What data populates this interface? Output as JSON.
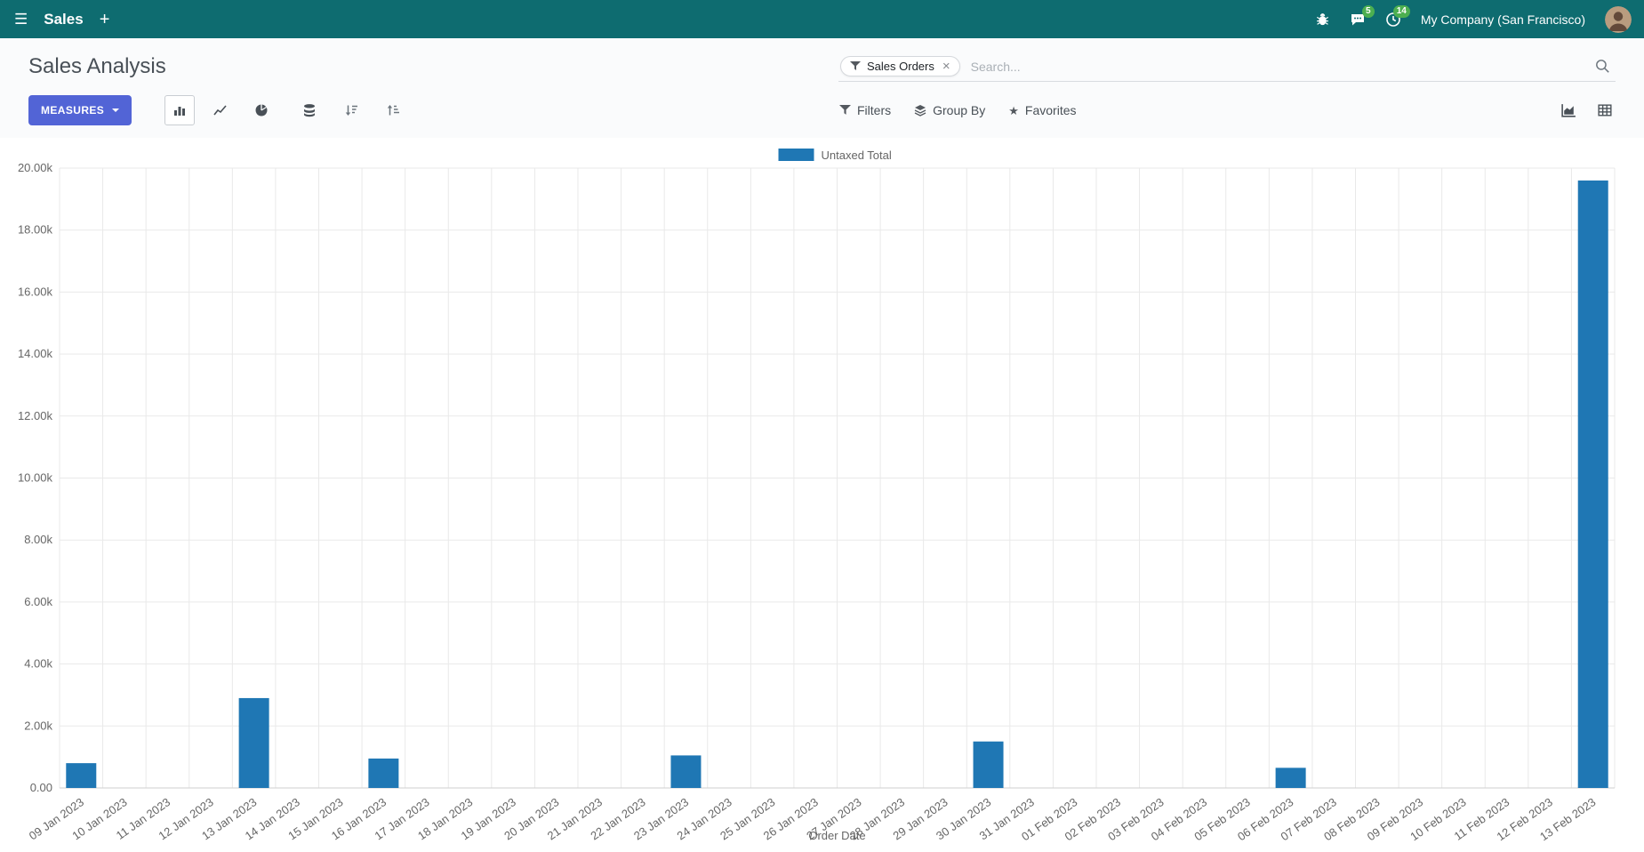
{
  "colors": {
    "navbar_bg": "#0e6c70",
    "primary": "#5264d6",
    "bar": "#1f77b4",
    "badge": "#4caf50"
  },
  "icons": {
    "hamburger": "☰",
    "plus": "+",
    "close": "×",
    "star": "★"
  },
  "navbar": {
    "app_name": "Sales",
    "messages_badge": "5",
    "activities_badge": "14",
    "company": "My Company (San Francisco)"
  },
  "control_panel": {
    "title": "Sales Analysis",
    "measures_label": "MEASURES",
    "filters_label": "Filters",
    "groupby_label": "Group By",
    "favorites_label": "Favorites",
    "search": {
      "facet": "Sales Orders",
      "placeholder": "Search..."
    }
  },
  "chart_data": {
    "type": "bar",
    "title": "",
    "xlabel": "Order Date",
    "ylabel": "",
    "ylim": [
      0,
      20000
    ],
    "grid": true,
    "legend_position": "top",
    "ytick_labels": [
      "0.00",
      "2.00k",
      "4.00k",
      "6.00k",
      "8.00k",
      "10.00k",
      "12.00k",
      "14.00k",
      "16.00k",
      "18.00k",
      "20.00k"
    ],
    "categories": [
      "09 Jan 2023",
      "10 Jan 2023",
      "11 Jan 2023",
      "12 Jan 2023",
      "13 Jan 2023",
      "14 Jan 2023",
      "15 Jan 2023",
      "16 Jan 2023",
      "17 Jan 2023",
      "18 Jan 2023",
      "19 Jan 2023",
      "20 Jan 2023",
      "21 Jan 2023",
      "22 Jan 2023",
      "23 Jan 2023",
      "24 Jan 2023",
      "25 Jan 2023",
      "26 Jan 2023",
      "27 Jan 2023",
      "28 Jan 2023",
      "29 Jan 2023",
      "30 Jan 2023",
      "31 Jan 2023",
      "01 Feb 2023",
      "02 Feb 2023",
      "03 Feb 2023",
      "04 Feb 2023",
      "05 Feb 2023",
      "06 Feb 2023",
      "07 Feb 2023",
      "08 Feb 2023",
      "09 Feb 2023",
      "10 Feb 2023",
      "11 Feb 2023",
      "12 Feb 2023",
      "13 Feb 2023"
    ],
    "series": [
      {
        "name": "Untaxed Total",
        "color": "#1f77b4",
        "values": [
          800,
          0,
          0,
          0,
          2900,
          0,
          0,
          950,
          0,
          0,
          0,
          0,
          0,
          0,
          1050,
          0,
          0,
          0,
          0,
          0,
          0,
          1500,
          0,
          0,
          0,
          0,
          0,
          0,
          650,
          0,
          0,
          0,
          0,
          0,
          0,
          19600
        ]
      }
    ]
  }
}
